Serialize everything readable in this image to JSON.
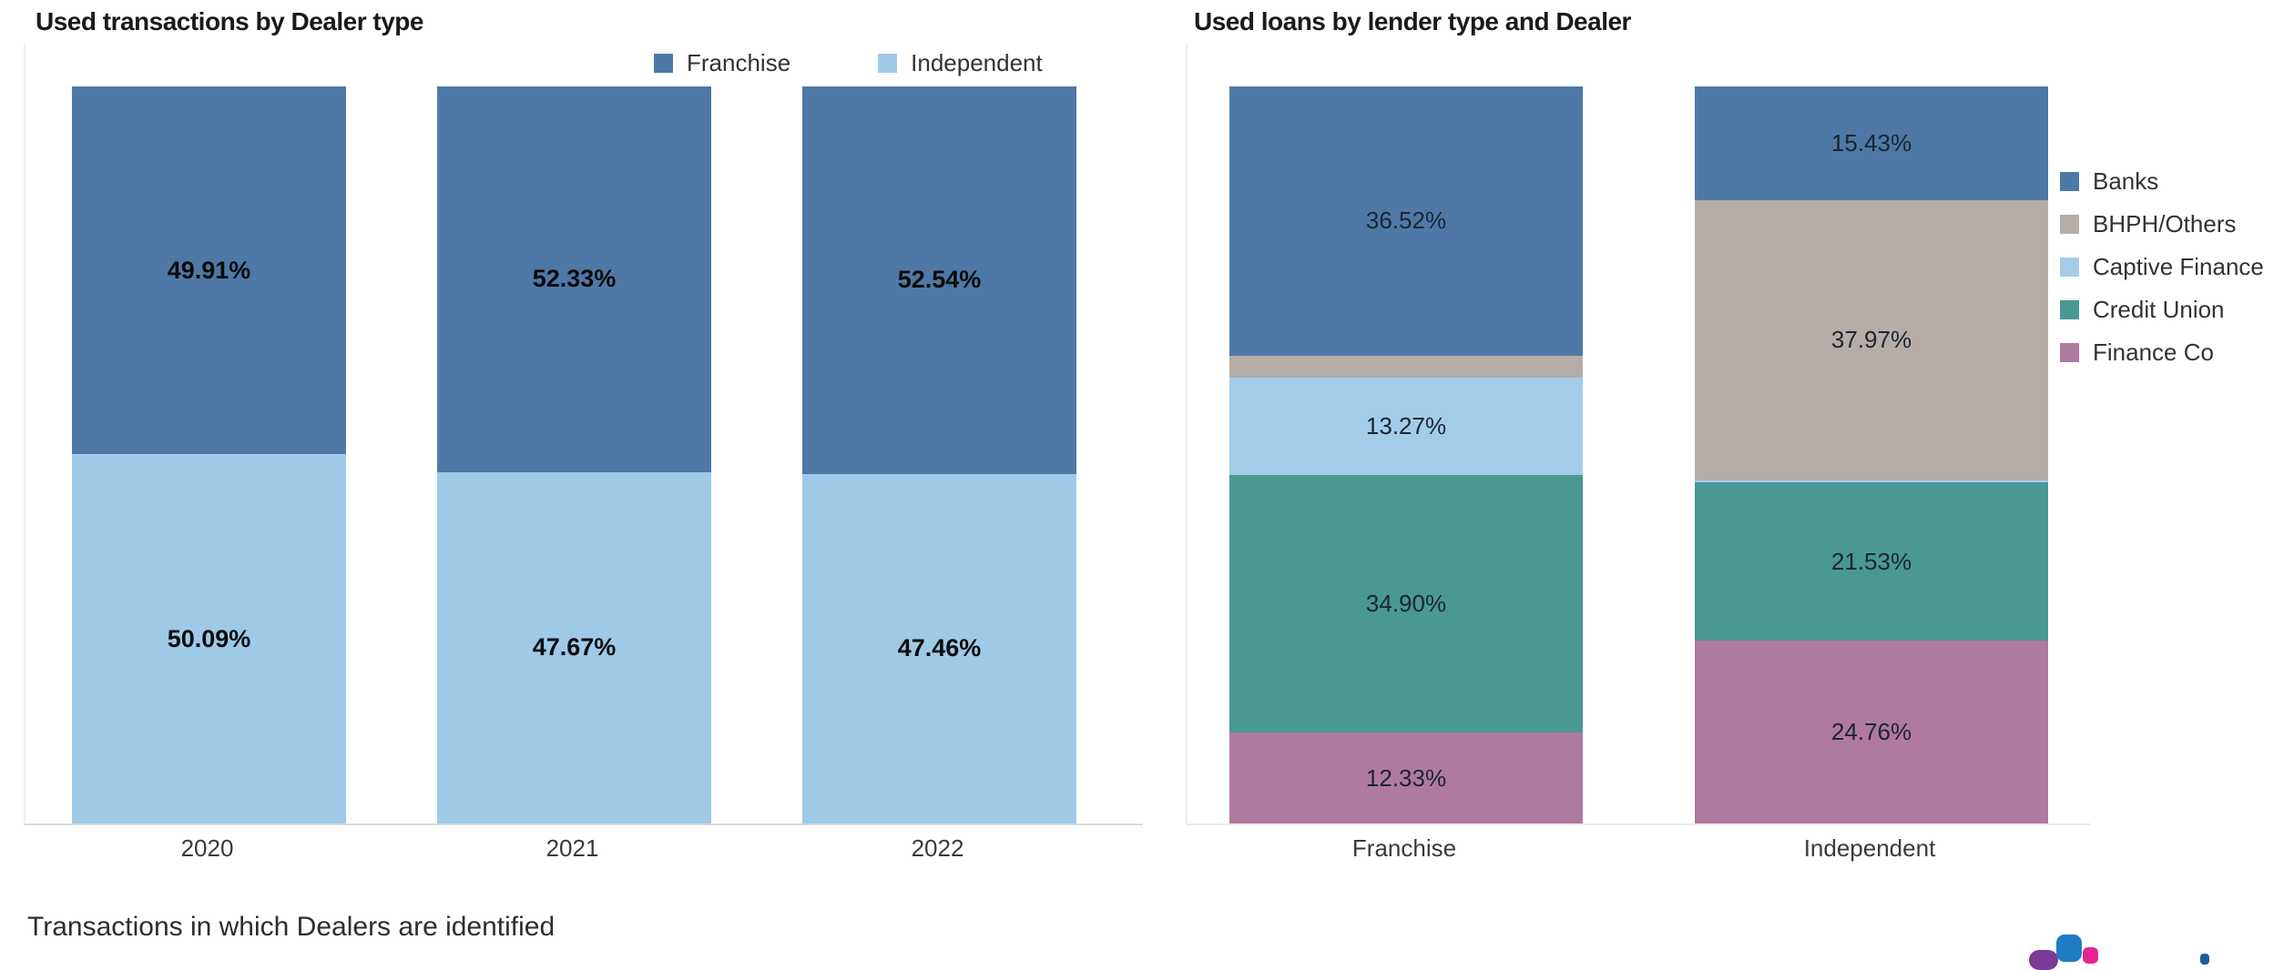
{
  "page": {
    "caption": "Transactions in which Dealers are identified"
  },
  "colors": {
    "franchise_blue": "#4e79a7",
    "independent_light_blue": "#9ecae8",
    "bhph_gray": "#b6ada8",
    "captive_light_blue": "#a3cce9",
    "credit_union_teal": "#499894",
    "finance_co_mauve": "#b07a9f",
    "axis_line": "#dadada",
    "label_dark": "#0b0b0b"
  },
  "logo": {
    "shapes": [
      {
        "name": "purple",
        "color": "#7a3a96"
      },
      {
        "name": "blue",
        "color": "#1e7dc2"
      },
      {
        "name": "pink",
        "color": "#e0268f"
      },
      {
        "name": "navy",
        "color": "#1c5c9f"
      }
    ]
  },
  "chart_data": [
    {
      "type": "bar",
      "subtype": "stacked-100-percent-column",
      "title": "Used transactions by Dealer type",
      "categories": [
        "2020",
        "2021",
        "2022"
      ],
      "series": [
        {
          "name": "Franchise",
          "color": "#4e79a7",
          "values": [
            49.91,
            52.33,
            52.54
          ],
          "labels": [
            "49.91%",
            "52.33%",
            "52.54%"
          ]
        },
        {
          "name": "Independent",
          "color": "#9ecae8",
          "values": [
            50.09,
            47.67,
            47.46
          ],
          "labels": [
            "50.09%",
            "47.67%",
            "47.46%"
          ]
        }
      ],
      "stack_order": "first-series-on-top",
      "ylim": [
        0,
        100
      ],
      "grid": false,
      "legend_position": "top"
    },
    {
      "type": "bar",
      "subtype": "stacked-100-percent-column",
      "title": "Used loans by lender type and Dealer",
      "categories": [
        "Franchise",
        "Independent"
      ],
      "series": [
        {
          "name": "Banks",
          "color": "#4e79a7",
          "values": [
            36.52,
            15.43
          ],
          "labels": [
            "36.52%",
            "15.43%"
          ]
        },
        {
          "name": "BHPH/Others",
          "color": "#b6ada8",
          "values": [
            2.98,
            37.97
          ],
          "labels": [
            null,
            "37.97%"
          ]
        },
        {
          "name": "Captive Finance",
          "color": "#a3cce9",
          "values": [
            13.27,
            0.31
          ],
          "labels": [
            "13.27%",
            null
          ]
        },
        {
          "name": "Credit Union",
          "color": "#499894",
          "values": [
            34.9,
            21.53
          ],
          "labels": [
            "34.90%",
            "21.53%"
          ]
        },
        {
          "name": "Finance Co",
          "color": "#b07a9f",
          "values": [
            12.33,
            24.76
          ],
          "labels": [
            "12.33%",
            "24.76%"
          ]
        }
      ],
      "stack_order": "first-series-on-top",
      "ylim": [
        0,
        100
      ],
      "grid": false,
      "legend_position": "right"
    }
  ]
}
